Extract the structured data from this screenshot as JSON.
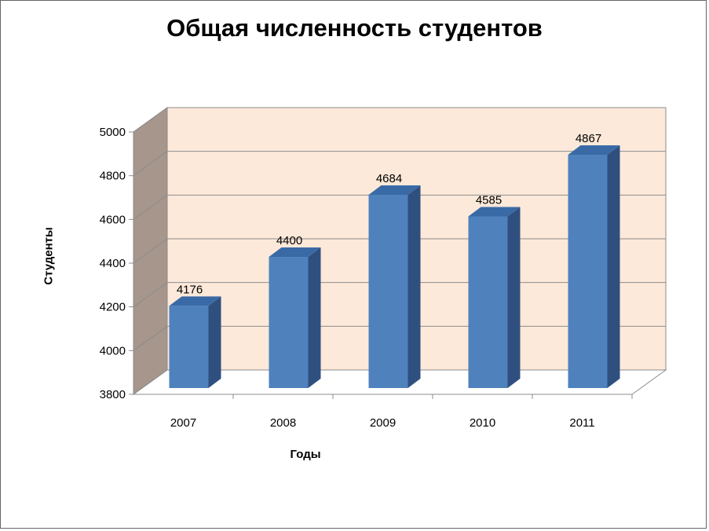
{
  "chart_data": {
    "type": "bar",
    "title": "Общая численность студентов",
    "xlabel": "Годы",
    "ylabel": "Студенты",
    "categories": [
      "2007",
      "2008",
      "2009",
      "2010",
      "2011"
    ],
    "values": [
      4176,
      4400,
      4684,
      4585,
      4867
    ],
    "ylim": [
      3800,
      5000
    ],
    "yticks": [
      3800,
      4000,
      4200,
      4400,
      4600,
      4800,
      5000
    ],
    "grid": true,
    "legend": "none",
    "colors": {
      "bar_front": "#4f81bd",
      "bar_side": "#2f4f7f",
      "bar_top": "#3a6aa6",
      "back_wall": "#fde9d9",
      "side_wall": "#a6968c"
    }
  }
}
